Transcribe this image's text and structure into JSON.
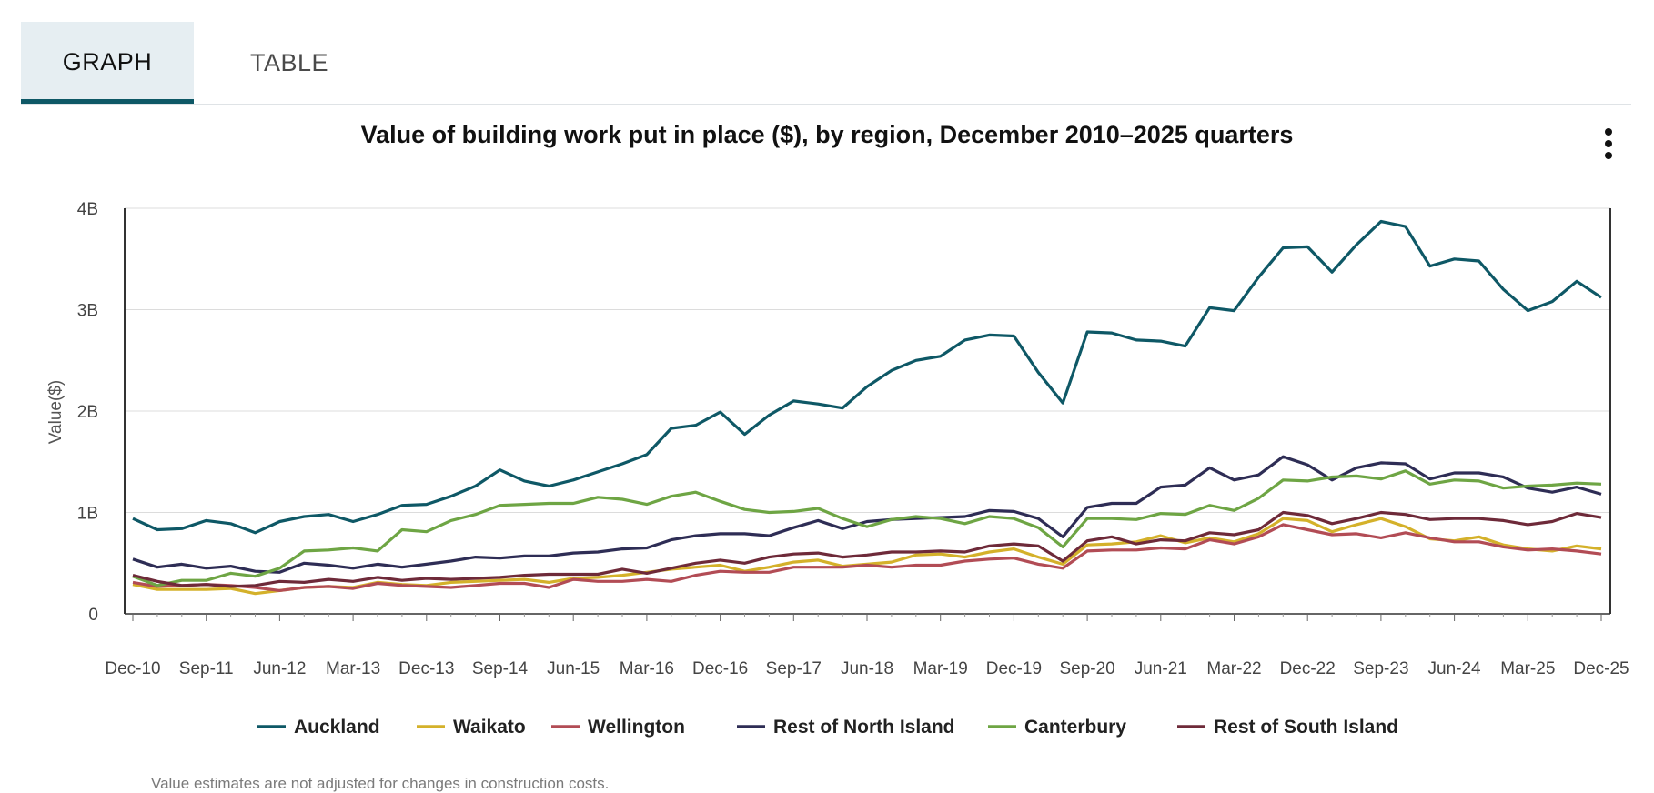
{
  "tabs": {
    "graph": "GRAPH",
    "table": "TABLE"
  },
  "footnote": "Value estimates are not adjusted for changes in construction costs.",
  "colors": {
    "accent": "#0e5866",
    "tab_active_bg": "#e6eef2"
  },
  "chart_data": {
    "type": "line",
    "title": "Value of building work put in place ($), by region, December 2010–2025 quarters",
    "ylabel": "Value($)",
    "xlabel": "",
    "ylim": [
      0,
      4000000000
    ],
    "yticks": [
      {
        "value": 0,
        "label": "0"
      },
      {
        "value": 1000000000,
        "label": "1B"
      },
      {
        "value": 2000000000,
        "label": "2B"
      },
      {
        "value": 3000000000,
        "label": "3B"
      },
      {
        "value": 4000000000,
        "label": "4B"
      }
    ],
    "xticks": [
      {
        "index": 0,
        "label": "Dec-10"
      },
      {
        "index": 3,
        "label": "Sep-11"
      },
      {
        "index": 6,
        "label": "Jun-12"
      },
      {
        "index": 9,
        "label": "Mar-13"
      },
      {
        "index": 12,
        "label": "Dec-13"
      },
      {
        "index": 15,
        "label": "Sep-14"
      },
      {
        "index": 18,
        "label": "Jun-15"
      },
      {
        "index": 21,
        "label": "Mar-16"
      },
      {
        "index": 24,
        "label": "Dec-16"
      },
      {
        "index": 27,
        "label": "Sep-17"
      },
      {
        "index": 30,
        "label": "Jun-18"
      },
      {
        "index": 33,
        "label": "Mar-19"
      },
      {
        "index": 36,
        "label": "Dec-19"
      },
      {
        "index": 39,
        "label": "Sep-20"
      },
      {
        "index": 42,
        "label": "Jun-21"
      },
      {
        "index": 45,
        "label": "Mar-22"
      },
      {
        "index": 48,
        "label": "Dec-22"
      },
      {
        "index": 51,
        "label": "Sep-23"
      },
      {
        "index": 54,
        "label": "Jun-24"
      },
      {
        "index": 57,
        "label": "Mar-25"
      },
      {
        "index": 60,
        "label": "Dec-25"
      }
    ],
    "series": [
      {
        "name": "Auckland",
        "color": "#0e5866",
        "values": [
          0.94,
          0.83,
          0.84,
          0.92,
          0.89,
          0.8,
          0.91,
          0.96,
          0.98,
          0.91,
          0.98,
          1.07,
          1.08,
          1.16,
          1.26,
          1.42,
          1.31,
          1.26,
          1.32,
          1.4,
          1.48,
          1.57,
          1.83,
          1.86,
          1.99,
          1.77,
          1.96,
          2.1,
          2.07,
          2.03,
          2.24,
          2.4,
          2.5,
          2.54,
          2.7,
          2.75,
          2.74,
          2.38,
          2.08,
          2.78,
          2.77,
          2.7,
          2.69,
          2.64,
          3.02,
          2.99,
          3.32,
          3.61,
          3.62,
          3.37,
          3.64,
          3.87,
          3.82,
          3.43,
          3.5,
          3.48,
          3.2,
          2.99,
          3.08,
          3.28,
          3.12
        ]
      },
      {
        "name": "Waikato",
        "color": "#d4b12a",
        "values": [
          0.29,
          0.24,
          0.24,
          0.24,
          0.25,
          0.2,
          0.23,
          0.26,
          0.27,
          0.26,
          0.31,
          0.29,
          0.28,
          0.31,
          0.32,
          0.33,
          0.34,
          0.31,
          0.35,
          0.36,
          0.38,
          0.41,
          0.44,
          0.46,
          0.48,
          0.42,
          0.46,
          0.51,
          0.53,
          0.47,
          0.49,
          0.51,
          0.58,
          0.59,
          0.56,
          0.61,
          0.64,
          0.56,
          0.49,
          0.68,
          0.69,
          0.71,
          0.77,
          0.7,
          0.75,
          0.71,
          0.79,
          0.94,
          0.92,
          0.81,
          0.88,
          0.94,
          0.86,
          0.74,
          0.72,
          0.76,
          0.68,
          0.64,
          0.62,
          0.67,
          0.64
        ]
      },
      {
        "name": "Wellington",
        "color": "#b24c55",
        "values": [
          0.31,
          0.27,
          0.28,
          0.29,
          0.28,
          0.26,
          0.23,
          0.26,
          0.27,
          0.25,
          0.3,
          0.28,
          0.27,
          0.26,
          0.28,
          0.3,
          0.3,
          0.26,
          0.34,
          0.32,
          0.32,
          0.34,
          0.32,
          0.38,
          0.42,
          0.41,
          0.41,
          0.46,
          0.46,
          0.46,
          0.48,
          0.46,
          0.48,
          0.48,
          0.52,
          0.54,
          0.55,
          0.49,
          0.45,
          0.62,
          0.63,
          0.63,
          0.65,
          0.64,
          0.73,
          0.69,
          0.76,
          0.88,
          0.83,
          0.78,
          0.79,
          0.75,
          0.8,
          0.75,
          0.71,
          0.71,
          0.66,
          0.63,
          0.64,
          0.62,
          0.59
        ]
      },
      {
        "name": "Rest of North Island",
        "color": "#2e2d55",
        "values": [
          0.54,
          0.46,
          0.49,
          0.45,
          0.47,
          0.42,
          0.41,
          0.5,
          0.48,
          0.45,
          0.49,
          0.46,
          0.49,
          0.52,
          0.56,
          0.55,
          0.57,
          0.57,
          0.6,
          0.61,
          0.64,
          0.65,
          0.73,
          0.77,
          0.79,
          0.79,
          0.77,
          0.85,
          0.92,
          0.84,
          0.91,
          0.93,
          0.94,
          0.95,
          0.96,
          1.02,
          1.01,
          0.94,
          0.76,
          1.05,
          1.09,
          1.09,
          1.25,
          1.27,
          1.44,
          1.32,
          1.37,
          1.55,
          1.47,
          1.32,
          1.44,
          1.49,
          1.48,
          1.33,
          1.39,
          1.39,
          1.35,
          1.24,
          1.2,
          1.25,
          1.18
        ]
      },
      {
        "name": "Canterbury",
        "color": "#6ea544",
        "values": [
          0.37,
          0.28,
          0.33,
          0.33,
          0.4,
          0.37,
          0.45,
          0.62,
          0.63,
          0.65,
          0.62,
          0.83,
          0.81,
          0.92,
          0.98,
          1.07,
          1.08,
          1.09,
          1.09,
          1.15,
          1.13,
          1.08,
          1.16,
          1.2,
          1.11,
          1.03,
          1.0,
          1.01,
          1.04,
          0.94,
          0.86,
          0.93,
          0.96,
          0.94,
          0.89,
          0.96,
          0.94,
          0.85,
          0.66,
          0.94,
          0.94,
          0.93,
          0.99,
          0.98,
          1.07,
          1.02,
          1.14,
          1.32,
          1.31,
          1.35,
          1.36,
          1.33,
          1.41,
          1.28,
          1.32,
          1.31,
          1.24,
          1.26,
          1.27,
          1.29,
          1.28
        ]
      },
      {
        "name": "Rest of South Island",
        "color": "#6e2a39",
        "values": [
          0.38,
          0.32,
          0.28,
          0.29,
          0.27,
          0.28,
          0.32,
          0.31,
          0.34,
          0.32,
          0.36,
          0.33,
          0.35,
          0.34,
          0.35,
          0.36,
          0.38,
          0.39,
          0.39,
          0.39,
          0.44,
          0.4,
          0.45,
          0.5,
          0.53,
          0.5,
          0.56,
          0.59,
          0.6,
          0.56,
          0.58,
          0.61,
          0.61,
          0.62,
          0.61,
          0.67,
          0.69,
          0.67,
          0.52,
          0.72,
          0.76,
          0.69,
          0.73,
          0.72,
          0.8,
          0.78,
          0.83,
          1.0,
          0.97,
          0.89,
          0.94,
          1.0,
          0.98,
          0.93,
          0.94,
          0.94,
          0.92,
          0.88,
          0.91,
          0.99,
          0.95
        ]
      }
    ]
  }
}
